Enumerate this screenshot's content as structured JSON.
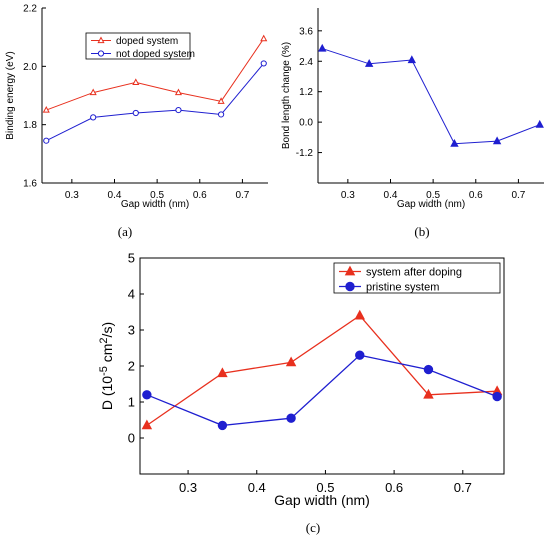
{
  "chart_data": [
    {
      "type": "line",
      "panel": "a",
      "caption": "(a)",
      "xlabel": "Gap width (nm)",
      "ylabel": "Binding energy (eV)",
      "xlim": [
        0.23,
        0.76
      ],
      "ylim": [
        1.6,
        2.2
      ],
      "xticks": [
        0.3,
        0.4,
        0.5,
        0.6,
        0.7
      ],
      "xtick_labels": [
        "0.3",
        "0.4",
        "0.5",
        "0.6",
        "0.7"
      ],
      "yticks": [
        1.6,
        1.8,
        2.0,
        2.2
      ],
      "ytick_labels": [
        "1.6",
        "1.8",
        "2.0",
        "2.2"
      ],
      "legend_position": "top-center",
      "series": [
        {
          "name": "doped system",
          "color": "#e8301e",
          "marker": "open-triangle",
          "x": [
            0.24,
            0.35,
            0.45,
            0.55,
            0.65,
            0.75
          ],
          "y": [
            1.85,
            1.91,
            1.945,
            1.91,
            1.88,
            2.095
          ]
        },
        {
          "name": "not doped system",
          "color": "#1f1fd0",
          "marker": "open-circle",
          "x": [
            0.24,
            0.35,
            0.45,
            0.55,
            0.65,
            0.75
          ],
          "y": [
            1.745,
            1.825,
            1.84,
            1.85,
            1.835,
            2.01
          ]
        }
      ]
    },
    {
      "type": "line",
      "panel": "b",
      "caption": "(b)",
      "xlabel": "Gap width (nm)",
      "ylabel": "Bond length change (%)",
      "xlim": [
        0.23,
        0.76
      ],
      "ylim": [
        -2.4,
        4.5
      ],
      "xticks": [
        0.3,
        0.4,
        0.5,
        0.6,
        0.7
      ],
      "xtick_labels": [
        "0.3",
        "0.4",
        "0.5",
        "0.6",
        "0.7"
      ],
      "yticks": [
        -1.2,
        0.0,
        1.2,
        2.4,
        3.6
      ],
      "ytick_labels": [
        "-1.2",
        "0.0",
        "1.2",
        "2.4",
        "3.6"
      ],
      "series": [
        {
          "name": "",
          "color": "#1f1fd0",
          "marker": "filled-triangle",
          "x": [
            0.24,
            0.35,
            0.45,
            0.55,
            0.65,
            0.75
          ],
          "y": [
            2.9,
            2.3,
            2.45,
            -0.85,
            -0.75,
            -0.1
          ]
        }
      ]
    },
    {
      "type": "line",
      "panel": "c",
      "caption": "(c)",
      "xlabel": "Gap width (nm)",
      "ylabel_main": "D (10",
      "ylabel_exp1": "-5",
      "ylabel_mid": " cm",
      "ylabel_exp2": "2",
      "ylabel_end": "/s)",
      "xlim": [
        0.23,
        0.76
      ],
      "ylim": [
        -1,
        5
      ],
      "xticks": [
        0.3,
        0.4,
        0.5,
        0.6,
        0.7
      ],
      "xtick_labels": [
        "0.3",
        "0.4",
        "0.5",
        "0.6",
        "0.7"
      ],
      "yticks": [
        0,
        1,
        2,
        3,
        4,
        5
      ],
      "ytick_labels": [
        "0",
        "1",
        "2",
        "3",
        "4",
        "5"
      ],
      "legend_position": "top-right",
      "series": [
        {
          "name": "system after doping",
          "color": "#e8301e",
          "marker": "filled-triangle",
          "x": [
            0.24,
            0.35,
            0.45,
            0.55,
            0.65,
            0.75
          ],
          "y": [
            0.35,
            1.8,
            2.1,
            3.4,
            1.2,
            1.3
          ]
        },
        {
          "name": "pristine system",
          "color": "#1f1fd0",
          "marker": "filled-circle",
          "x": [
            0.24,
            0.35,
            0.45,
            0.55,
            0.65,
            0.75
          ],
          "y": [
            1.2,
            0.35,
            0.55,
            2.3,
            1.9,
            1.15
          ]
        }
      ]
    }
  ]
}
